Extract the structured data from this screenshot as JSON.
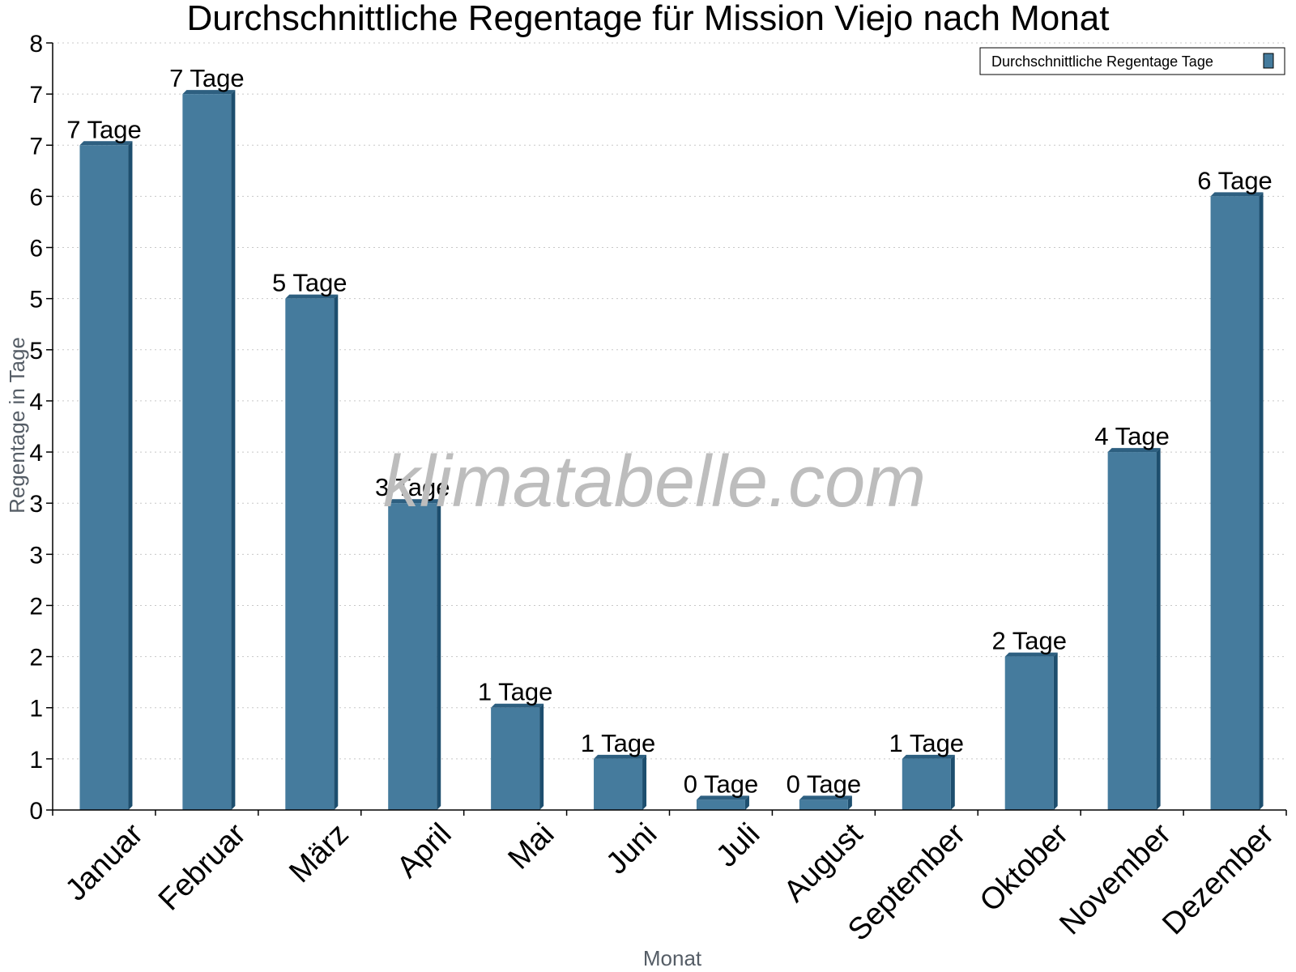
{
  "watermark": "klimatabelle.com",
  "colors": {
    "bar": "#457b9d",
    "bar_side": "#1d4e6e",
    "bar_top": "#2d5f80"
  },
  "chart_data": {
    "type": "bar",
    "title": "Durchschnittliche Regentage für Mission Viejo nach Monat",
    "xlabel": "Monat",
    "ylabel": "Regentage in Tage",
    "ylim": [
      0,
      7.5
    ],
    "y_tick_values": [
      0,
      0.5,
      1,
      1.5,
      2,
      2.5,
      3,
      3.5,
      4,
      4.5,
      5,
      5.5,
      6,
      6.5,
      7,
      7.5
    ],
    "y_tick_labels": [
      "0",
      "1",
      "1",
      "2",
      "2",
      "3",
      "3",
      "4",
      "4",
      "5",
      "5",
      "6",
      "6",
      "7",
      "7",
      "8"
    ],
    "categories": [
      "Januar",
      "Februar",
      "März",
      "April",
      "Mai",
      "Juni",
      "Juli",
      "August",
      "September",
      "Oktober",
      "November",
      "Dezember"
    ],
    "series": [
      {
        "name": "Durchschnittliche Regentage Tage",
        "values": [
          6.5,
          7.0,
          5.0,
          3.0,
          1.0,
          0.5,
          0.1,
          0.1,
          0.5,
          1.5,
          3.5,
          6.0
        ],
        "labels": [
          "7 Tage",
          "7 Tage",
          "5 Tage",
          "3 Tage",
          "1 Tage",
          "1 Tage",
          "0 Tage",
          "0 Tage",
          "1 Tage",
          "2 Tage",
          "4 Tage",
          "6 Tage"
        ]
      }
    ],
    "grid": true,
    "legend_position": "top-right"
  }
}
